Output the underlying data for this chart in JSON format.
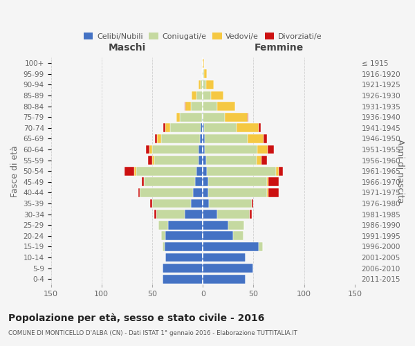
{
  "age_groups": [
    "0-4",
    "5-9",
    "10-14",
    "15-19",
    "20-24",
    "25-29",
    "30-34",
    "35-39",
    "40-44",
    "45-49",
    "50-54",
    "55-59",
    "60-64",
    "65-69",
    "70-74",
    "75-79",
    "80-84",
    "85-89",
    "90-94",
    "95-99",
    "100+"
  ],
  "birth_years": [
    "2011-2015",
    "2006-2010",
    "2001-2005",
    "1996-2000",
    "1991-1995",
    "1986-1990",
    "1981-1985",
    "1976-1980",
    "1971-1975",
    "1966-1970",
    "1961-1965",
    "1956-1960",
    "1951-1955",
    "1946-1950",
    "1941-1945",
    "1936-1940",
    "1931-1935",
    "1926-1930",
    "1921-1925",
    "1916-1920",
    "≤ 1915"
  ],
  "colors": {
    "celibe": "#4472c4",
    "coniugato": "#c5d9a0",
    "vedovo": "#f5c842",
    "divorziato": "#cc1111"
  },
  "male": {
    "celibe": [
      40,
      40,
      37,
      38,
      37,
      34,
      18,
      12,
      10,
      8,
      6,
      4,
      4,
      3,
      2,
      1,
      0,
      0,
      0,
      0,
      0
    ],
    "coniugato": [
      0,
      0,
      0,
      2,
      4,
      10,
      28,
      38,
      52,
      50,
      60,
      44,
      46,
      38,
      30,
      22,
      12,
      6,
      2,
      1,
      0
    ],
    "vedovo": [
      0,
      0,
      0,
      0,
      0,
      0,
      0,
      0,
      0,
      0,
      2,
      2,
      3,
      4,
      5,
      3,
      5,
      5,
      2,
      0,
      0
    ],
    "divorziato": [
      0,
      0,
      0,
      0,
      0,
      0,
      2,
      2,
      2,
      2,
      9,
      4,
      3,
      2,
      2,
      0,
      1,
      0,
      0,
      0,
      0
    ]
  },
  "female": {
    "nubile": [
      42,
      50,
      42,
      55,
      30,
      25,
      14,
      6,
      5,
      5,
      4,
      3,
      2,
      2,
      1,
      0,
      0,
      0,
      0,
      0,
      0
    ],
    "coniugata": [
      0,
      0,
      0,
      4,
      10,
      16,
      32,
      42,
      58,
      58,
      68,
      50,
      52,
      42,
      32,
      22,
      14,
      8,
      3,
      1,
      0
    ],
    "vedova": [
      0,
      0,
      0,
      0,
      0,
      0,
      0,
      0,
      2,
      2,
      3,
      5,
      10,
      16,
      22,
      22,
      18,
      12,
      8,
      3,
      1
    ],
    "divorziata": [
      0,
      0,
      0,
      0,
      0,
      0,
      2,
      2,
      10,
      10,
      4,
      5,
      6,
      3,
      2,
      1,
      0,
      0,
      0,
      0,
      0
    ]
  },
  "xlim": 150,
  "background_color": "#f5f5f5",
  "grid_color": "#cccccc",
  "title": "Popolazione per età, sesso e stato civile - 2016",
  "subtitle": "COMUNE DI MONTICELLO D'ALBA (CN) - Dati ISTAT 1° gennaio 2016 - Elaborazione TUTTITALIA.IT",
  "ylabel_left": "Fasce di età",
  "ylabel_right": "Anni di nascita",
  "maschi_label": "Maschi",
  "femmine_label": "Femmine"
}
